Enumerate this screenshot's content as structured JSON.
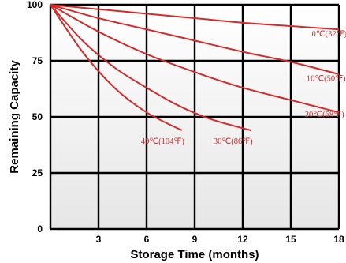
{
  "chart_data": {
    "type": "line",
    "title": "",
    "xlabel": "Storage Time (months)",
    "ylabel": "Remaining Capacity",
    "xlim": [
      0,
      18
    ],
    "ylim": [
      0,
      100
    ],
    "xticks": [
      3,
      6,
      9,
      12,
      15,
      18
    ],
    "xtick_labels": [
      "3",
      "6",
      "9",
      "12",
      "15",
      "18"
    ],
    "yticks": [
      0,
      25,
      50,
      75,
      100
    ],
    "ytick_labels": [
      "0",
      "25",
      "50",
      "75",
      "100"
    ],
    "grid": true,
    "series_color": "#d42a2a",
    "background_top_color": "#ffffff",
    "background_bottom_color": "#e6e6e6",
    "series": [
      {
        "name": "0℃(32℉)",
        "label_at": [
          17.4,
          86
        ],
        "x": [
          0,
          3,
          6,
          9,
          12,
          15,
          18
        ],
        "y": [
          100,
          98,
          96,
          94,
          92,
          90.5,
          89
        ]
      },
      {
        "name": "10℃(50℉)",
        "label_at": [
          17.2,
          66
        ],
        "x": [
          0,
          3,
          6,
          9,
          12,
          15,
          18
        ],
        "y": [
          100,
          94,
          89,
          84,
          79,
          74.5,
          69
        ]
      },
      {
        "name": "20℃(68℉)",
        "label_at": [
          17.1,
          50
        ],
        "x": [
          0,
          3,
          6,
          9,
          12,
          15,
          18
        ],
        "y": [
          100,
          88,
          78,
          70,
          63,
          57.5,
          52
        ]
      },
      {
        "name": "30℃(86℉)",
        "label_at": [
          11.4,
          38
        ],
        "x": [
          0,
          2,
          4,
          6,
          8,
          10,
          12.5
        ],
        "y": [
          100,
          84,
          72,
          63,
          55,
          49,
          44
        ]
      },
      {
        "name": "40℃(104℉)",
        "label_at": [
          7.0,
          38
        ],
        "x": [
          0,
          2,
          4,
          6,
          8.2
        ],
        "y": [
          100,
          79,
          63,
          52,
          44
        ]
      }
    ]
  }
}
